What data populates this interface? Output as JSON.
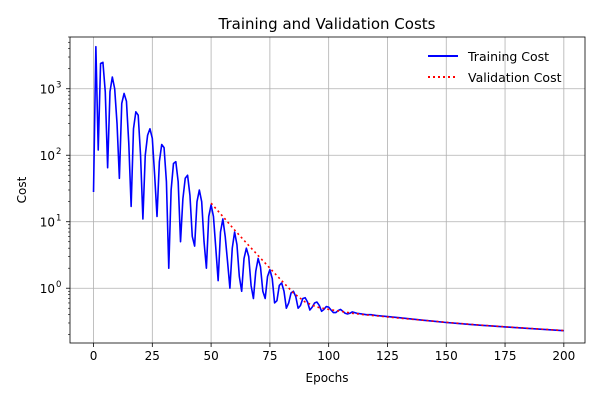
{
  "chart_data": {
    "type": "line",
    "title": "Training and Validation Costs",
    "xlabel": "Epochs",
    "ylabel": "Cost",
    "xlim": [
      -10,
      209
    ],
    "ylim": [
      0.15,
      6000
    ],
    "yscale": "log",
    "grid": true,
    "legend_position": "top-right",
    "x_ticks": [
      0,
      25,
      50,
      75,
      100,
      125,
      150,
      175,
      200
    ],
    "y_ticks": [
      {
        "value": 1,
        "label": "10",
        "exp": "0"
      },
      {
        "value": 10,
        "label": "10",
        "exp": "1"
      },
      {
        "value": 100,
        "label": "10",
        "exp": "2"
      },
      {
        "value": 1000,
        "label": "10",
        "exp": "3"
      }
    ],
    "series": [
      {
        "name": "Training Cost",
        "color": "#0000ff",
        "style": "solid",
        "points": [
          [
            0,
            28
          ],
          [
            1,
            4300
          ],
          [
            2,
            120
          ],
          [
            3,
            2400
          ],
          [
            4,
            2500
          ],
          [
            5,
            900
          ],
          [
            6,
            65
          ],
          [
            7,
            900
          ],
          [
            8,
            1500
          ],
          [
            9,
            1000
          ],
          [
            10,
            300
          ],
          [
            11,
            45
          ],
          [
            12,
            600
          ],
          [
            13,
            850
          ],
          [
            14,
            650
          ],
          [
            15,
            150
          ],
          [
            16,
            17
          ],
          [
            17,
            250
          ],
          [
            18,
            450
          ],
          [
            19,
            400
          ],
          [
            20,
            100
          ],
          [
            21,
            11
          ],
          [
            22,
            100
          ],
          [
            23,
            200
          ],
          [
            24,
            250
          ],
          [
            25,
            180
          ],
          [
            26,
            50
          ],
          [
            27,
            12
          ],
          [
            28,
            80
          ],
          [
            29,
            145
          ],
          [
            30,
            130
          ],
          [
            31,
            40
          ],
          [
            32,
            2
          ],
          [
            33,
            30
          ],
          [
            34,
            75
          ],
          [
            35,
            80
          ],
          [
            36,
            40
          ],
          [
            37,
            5
          ],
          [
            38,
            22
          ],
          [
            39,
            45
          ],
          [
            40,
            50
          ],
          [
            41,
            25
          ],
          [
            42,
            6
          ],
          [
            43,
            4.3
          ],
          [
            44,
            20
          ],
          [
            45,
            30
          ],
          [
            46,
            20
          ],
          [
            47,
            5
          ],
          [
            48,
            2
          ],
          [
            49,
            12
          ],
          [
            50,
            18
          ],
          [
            51,
            12
          ],
          [
            52,
            4
          ],
          [
            53,
            1.3
          ],
          [
            54,
            7
          ],
          [
            55,
            11
          ],
          [
            56,
            6
          ],
          [
            57,
            2.5
          ],
          [
            58,
            1
          ],
          [
            59,
            4
          ],
          [
            60,
            7
          ],
          [
            61,
            4.5
          ],
          [
            62,
            1.5
          ],
          [
            63,
            0.9
          ],
          [
            64,
            2.8
          ],
          [
            65,
            4
          ],
          [
            66,
            3
          ],
          [
            67,
            1.1
          ],
          [
            68,
            0.7
          ],
          [
            69,
            1.8
          ],
          [
            70,
            2.8
          ],
          [
            71,
            2.1
          ],
          [
            72,
            0.9
          ],
          [
            73,
            0.7
          ],
          [
            74,
            1.5
          ],
          [
            75,
            1.9
          ],
          [
            76,
            1.4
          ],
          [
            77,
            0.6
          ],
          [
            78,
            0.65
          ],
          [
            79,
            1.1
          ],
          [
            80,
            1.2
          ],
          [
            81,
            0.9
          ],
          [
            82,
            0.5
          ],
          [
            83,
            0.6
          ],
          [
            84,
            0.85
          ],
          [
            85,
            0.9
          ],
          [
            86,
            0.75
          ],
          [
            87,
            0.5
          ],
          [
            88,
            0.55
          ],
          [
            89,
            0.7
          ],
          [
            90,
            0.72
          ],
          [
            91,
            0.62
          ],
          [
            92,
            0.47
          ],
          [
            93,
            0.52
          ],
          [
            94,
            0.6
          ],
          [
            95,
            0.62
          ],
          [
            96,
            0.55
          ],
          [
            97,
            0.45
          ],
          [
            98,
            0.48
          ],
          [
            99,
            0.53
          ],
          [
            100,
            0.52
          ],
          [
            101,
            0.47
          ],
          [
            102,
            0.43
          ],
          [
            103,
            0.43
          ],
          [
            104,
            0.46
          ],
          [
            105,
            0.48
          ],
          [
            106,
            0.45
          ],
          [
            107,
            0.42
          ],
          [
            108,
            0.41
          ],
          [
            109,
            0.42
          ],
          [
            110,
            0.44
          ],
          [
            112,
            0.42
          ],
          [
            114,
            0.41
          ],
          [
            116,
            0.4
          ],
          [
            118,
            0.4
          ],
          [
            120,
            0.39
          ],
          [
            125,
            0.375
          ],
          [
            130,
            0.36
          ],
          [
            135,
            0.345
          ],
          [
            140,
            0.33
          ],
          [
            145,
            0.318
          ],
          [
            150,
            0.305
          ],
          [
            155,
            0.295
          ],
          [
            160,
            0.285
          ],
          [
            165,
            0.277
          ],
          [
            170,
            0.27
          ],
          [
            175,
            0.262
          ],
          [
            180,
            0.255
          ],
          [
            185,
            0.248
          ],
          [
            190,
            0.242
          ],
          [
            195,
            0.236
          ],
          [
            200,
            0.23
          ]
        ]
      },
      {
        "name": "Validation Cost",
        "color": "#ff0000",
        "style": "dotted",
        "points": [
          [
            50,
            19
          ],
          [
            55,
            12
          ],
          [
            60,
            7.5
          ],
          [
            65,
            4.8
          ],
          [
            70,
            3.1
          ],
          [
            75,
            2.0
          ],
          [
            80,
            1.3
          ],
          [
            85,
            0.85
          ],
          [
            90,
            0.62
          ],
          [
            95,
            0.52
          ],
          [
            100,
            0.48
          ],
          [
            105,
            0.45
          ],
          [
            110,
            0.42
          ],
          [
            115,
            0.4
          ],
          [
            120,
            0.385
          ],
          [
            125,
            0.37
          ],
          [
            130,
            0.355
          ],
          [
            140,
            0.33
          ],
          [
            150,
            0.307
          ],
          [
            160,
            0.287
          ],
          [
            170,
            0.27
          ],
          [
            180,
            0.256
          ],
          [
            190,
            0.243
          ],
          [
            200,
            0.231
          ]
        ]
      }
    ]
  }
}
